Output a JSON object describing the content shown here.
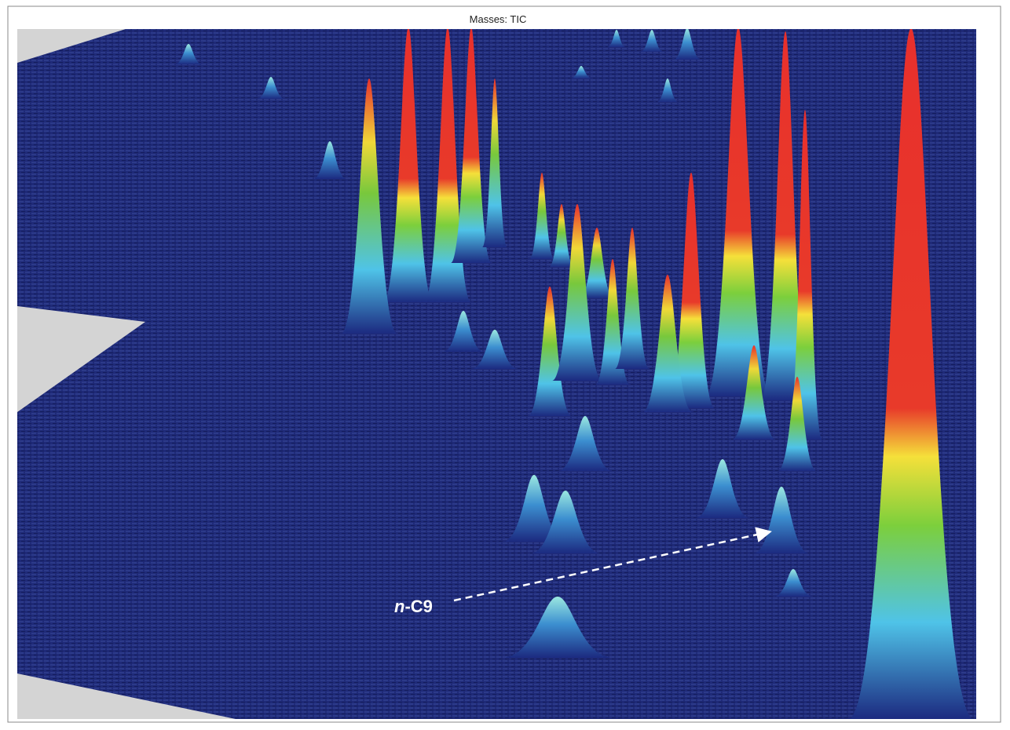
{
  "header": {
    "title": "Masses: TIC"
  },
  "annotation": {
    "italic": "n",
    "label": "-C9"
  }
}
